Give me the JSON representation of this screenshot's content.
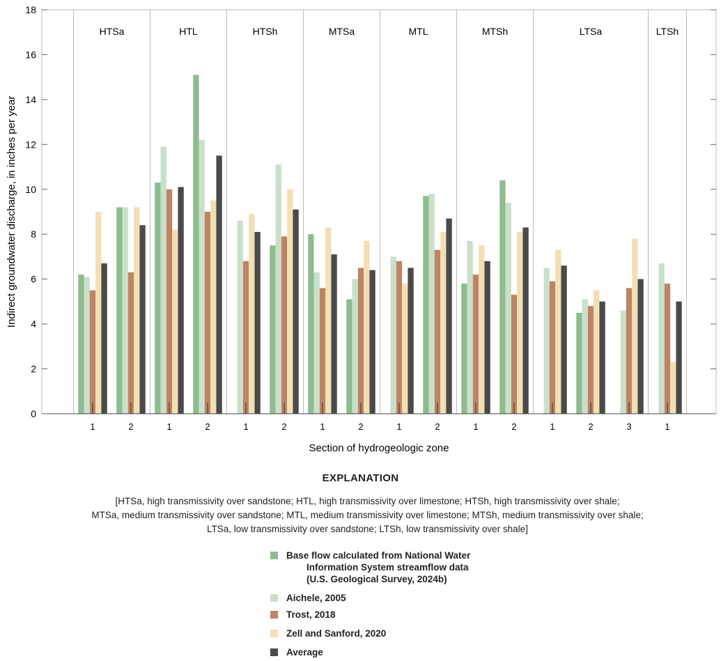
{
  "chart_data": {
    "type": "bar",
    "xlabel": "Section of hydrogeologic zone",
    "ylabel": "Indirect groundwater discharge, in inches per year",
    "ylim": [
      0,
      18
    ],
    "yticks": [
      0,
      2,
      4,
      6,
      8,
      10,
      12,
      14,
      16,
      18
    ],
    "grid": false,
    "zones": [
      {
        "label": "HTSa",
        "sections": 2
      },
      {
        "label": "HTL",
        "sections": 2
      },
      {
        "label": "HTSh",
        "sections": 2
      },
      {
        "label": "MTSa",
        "sections": 2
      },
      {
        "label": "MTL",
        "sections": 2
      },
      {
        "label": "MTSh",
        "sections": 2
      },
      {
        "label": "LTSa",
        "sections": 3
      },
      {
        "label": "LTSh",
        "sections": 1
      }
    ],
    "categories": [
      "1",
      "2",
      "1",
      "2",
      "1",
      "2",
      "1",
      "2",
      "1",
      "2",
      "1",
      "2",
      "1",
      "2",
      "3",
      "1"
    ],
    "series": [
      {
        "name": "Base flow calculated from National Water Information System streamflow data (U.S. Geological Survey, 2024b)",
        "color": "#8fbc8f",
        "values": [
          6.2,
          9.2,
          10.3,
          15.1,
          null,
          7.5,
          8.0,
          5.1,
          null,
          9.7,
          5.8,
          10.4,
          null,
          4.5,
          null,
          null
        ]
      },
      {
        "name": "Aichele, 2005",
        "color": "#c9e0cb",
        "values": [
          6.1,
          9.2,
          11.9,
          12.2,
          8.6,
          11.1,
          6.3,
          6.0,
          7.0,
          9.8,
          7.7,
          9.4,
          6.5,
          5.1,
          4.6,
          6.7
        ]
      },
      {
        "name": "Trost, 2018",
        "color": "#bd8466",
        "values": [
          5.5,
          6.3,
          10.0,
          9.0,
          6.8,
          7.9,
          5.6,
          6.5,
          6.8,
          7.3,
          6.2,
          5.3,
          5.9,
          4.8,
          5.6,
          5.8
        ]
      },
      {
        "name": "Zell and Sanford, 2020",
        "color": "#f4dfb3",
        "values": [
          9.0,
          9.2,
          8.2,
          9.5,
          8.9,
          10.0,
          8.3,
          7.7,
          5.8,
          8.1,
          7.5,
          8.1,
          7.3,
          5.5,
          7.8,
          2.3
        ]
      },
      {
        "name": "Average",
        "color": "#4a4a4a",
        "values": [
          6.7,
          8.4,
          10.1,
          11.5,
          8.1,
          9.1,
          7.1,
          6.4,
          6.5,
          8.7,
          6.8,
          8.3,
          6.6,
          5.0,
          6.0,
          5.0
        ]
      }
    ]
  },
  "explanation": {
    "title": "EXPLANATION",
    "note_line1": "[HTSa, high transmissivity over sandstone; HTL, high transmissivity over limestone; HTSh, high transmissivity over shale;",
    "note_line2": "MTSa, medium transmissivity over sandstone; MTL, medium transmissivity over limestone; MTSh, medium transmissivity over shale;",
    "note_line3": "LTSa, low transmissivity over sandstone; LTSh, low transmissivity over shale]",
    "legend": [
      {
        "line1": "Base flow calculated from National Water",
        "line2": "Information System streamflow data",
        "line3": "(U.S. Geological Survey, 2024b)"
      },
      {
        "line1": "Aichele, 2005"
      },
      {
        "line1": "Trost, 2018"
      },
      {
        "line1": "Zell and Sanford, 2020"
      },
      {
        "line1": "Average"
      }
    ]
  }
}
